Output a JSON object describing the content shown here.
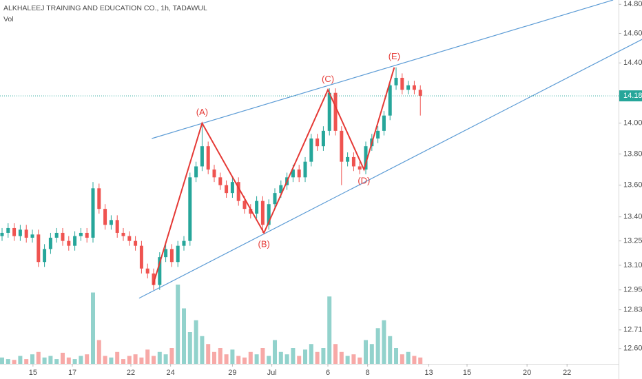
{
  "chart_data": {
    "type": "candlestick",
    "title": "ALKHALEEJ TRAINING AND EDUCATION CO., 1h, TADAWUL",
    "volume_label": "Vol",
    "log_scale": true,
    "grid": false,
    "up_color": "#26a69a",
    "down_color": "#ef5350",
    "pattern_color": "#e53935",
    "trendline_color": "#5b9bd5",
    "xlim": [
      -0.34,
      101.7
    ],
    "ylim": [
      12.51,
      14.83
    ],
    "xticks": [
      {
        "value": 5.1,
        "label": "15"
      },
      {
        "value": 11.6,
        "label": "17"
      },
      {
        "value": 21.25,
        "label": "22"
      },
      {
        "value": 27.8,
        "label": "24"
      },
      {
        "value": 38,
        "label": "29"
      },
      {
        "value": 44.5,
        "label": "Jul"
      },
      {
        "value": 53.75,
        "label": "6"
      },
      {
        "value": 60.3,
        "label": "8"
      },
      {
        "value": 70.4,
        "label": "13"
      },
      {
        "value": 76.7,
        "label": "15"
      },
      {
        "value": 86.6,
        "label": "20"
      },
      {
        "value": 93.2,
        "label": "22"
      }
    ],
    "yticks": [
      {
        "value": 12.6,
        "label": "12.60"
      },
      12.71,
      12.83,
      12.95,
      {
        "value": 13.1,
        "label": "13.10"
      },
      13.25,
      {
        "value": 13.4,
        "label": "13.40"
      },
      {
        "value": 13.6,
        "label": "13.60"
      },
      {
        "value": 13.8,
        "label": "13.80"
      },
      {
        "value": 14.0,
        "label": "14.00"
      },
      {
        "value": 14.4,
        "label": "14.40"
      },
      {
        "value": 14.6,
        "label": "14.60"
      },
      {
        "value": 14.8,
        "label": "14.80"
      }
    ],
    "last_price": 14.18,
    "open": [
      13.28,
      13.3,
      13.33,
      13.28,
      13.32,
      13.27,
      13.29,
      13.12,
      13.2,
      13.27,
      13.3,
      13.25,
      13.22,
      13.28,
      13.3,
      13.27,
      13.58,
      13.45,
      13.35,
      13.38,
      13.3,
      13.28,
      13.25,
      13.22,
      13.08,
      13.05,
      12.98,
      13.15,
      13.2,
      13.12,
      13.22,
      13.25,
      13.65,
      13.72,
      13.85,
      13.7,
      13.65,
      13.6,
      13.55,
      13.62,
      13.5,
      13.45,
      13.42,
      13.5,
      13.35,
      13.48,
      13.55,
      13.6,
      13.65,
      13.7,
      13.65,
      13.75,
      13.9,
      13.85,
      13.95,
      14.2,
      13.95,
      13.75,
      13.78,
      13.72,
      13.7,
      13.85,
      13.9,
      13.95,
      14.05,
      14.25,
      14.3,
      14.22,
      14.25,
      14.22
    ],
    "high": [
      13.33,
      13.36,
      13.36,
      13.35,
      13.35,
      13.32,
      13.32,
      13.23,
      13.3,
      13.33,
      13.33,
      13.28,
      13.31,
      13.33,
      13.33,
      13.62,
      13.61,
      13.48,
      13.41,
      13.41,
      13.33,
      13.31,
      13.28,
      13.25,
      13.11,
      13.08,
      13.18,
      13.23,
      13.23,
      13.25,
      13.28,
      13.68,
      13.75,
      14.0,
      13.88,
      13.73,
      13.68,
      13.63,
      13.65,
      13.65,
      13.53,
      13.48,
      13.53,
      13.53,
      13.51,
      13.58,
      13.63,
      13.68,
      13.73,
      13.73,
      13.78,
      13.93,
      13.93,
      13.98,
      14.23,
      14.23,
      13.98,
      13.81,
      13.81,
      13.75,
      13.88,
      13.93,
      13.98,
      14.08,
      14.28,
      14.37,
      14.33,
      14.28,
      14.28,
      14.25
    ],
    "low": [
      13.25,
      13.27,
      13.25,
      13.25,
      13.24,
      13.24,
      13.09,
      13.09,
      13.17,
      13.24,
      13.22,
      13.19,
      13.19,
      13.25,
      13.24,
      13.24,
      13.42,
      13.32,
      13.32,
      13.27,
      13.25,
      13.22,
      13.19,
      13.05,
      13.02,
      12.95,
      12.95,
      13.12,
      13.09,
      13.09,
      13.19,
      13.22,
      13.62,
      13.69,
      13.67,
      13.62,
      13.57,
      13.52,
      13.52,
      13.47,
      13.42,
      13.39,
      13.39,
      13.3,
      13.32,
      13.45,
      13.52,
      13.57,
      13.62,
      13.62,
      13.62,
      13.72,
      13.82,
      13.82,
      13.92,
      13.92,
      13.6,
      13.72,
      13.69,
      13.67,
      13.67,
      13.82,
      13.87,
      13.92,
      14.02,
      14.22,
      14.19,
      14.19,
      14.19,
      14.05
    ],
    "close": [
      13.3,
      13.33,
      13.28,
      13.32,
      13.27,
      13.29,
      13.12,
      13.2,
      13.27,
      13.3,
      13.25,
      13.22,
      13.28,
      13.3,
      13.27,
      13.58,
      13.45,
      13.35,
      13.38,
      13.3,
      13.28,
      13.25,
      13.22,
      13.08,
      13.05,
      12.98,
      13.15,
      13.2,
      13.12,
      13.22,
      13.25,
      13.65,
      13.72,
      13.85,
      13.7,
      13.65,
      13.6,
      13.55,
      13.62,
      13.5,
      13.45,
      13.42,
      13.5,
      13.35,
      13.48,
      13.55,
      13.6,
      13.65,
      13.7,
      13.65,
      13.75,
      13.9,
      13.85,
      13.95,
      14.2,
      13.95,
      13.75,
      13.78,
      13.72,
      13.7,
      13.85,
      13.9,
      13.95,
      14.05,
      14.25,
      14.3,
      14.22,
      14.25,
      14.22,
      14.18
    ],
    "volume": [
      8,
      6,
      5,
      10,
      6,
      12,
      15,
      8,
      10,
      6,
      14,
      8,
      6,
      10,
      12,
      90,
      30,
      10,
      8,
      15,
      6,
      10,
      12,
      8,
      18,
      10,
      15,
      12,
      20,
      100,
      70,
      40,
      55,
      35,
      25,
      15,
      20,
      12,
      18,
      10,
      8,
      15,
      12,
      20,
      10,
      30,
      15,
      12,
      20,
      10,
      18,
      25,
      15,
      20,
      85,
      25,
      15,
      10,
      12,
      8,
      30,
      25,
      45,
      55,
      35,
      20,
      12,
      15,
      10,
      8
    ],
    "trendlines": [
      {
        "x": [
          24.7,
          100.8
        ],
        "y": [
          13.9,
          14.83
        ]
      },
      {
        "x": [
          22.6,
          105.6
        ],
        "y": [
          12.9,
          14.56
        ]
      }
    ],
    "zigzag": {
      "x": [
        24.9,
        33,
        43.2,
        53.75,
        59.7,
        64.7
      ],
      "y": [
        12.98,
        14.0,
        13.3,
        14.22,
        13.7,
        14.37
      ],
      "labels": [
        null,
        "(A)",
        "(B)",
        "(C)",
        "(D)",
        "(E)"
      ]
    }
  }
}
